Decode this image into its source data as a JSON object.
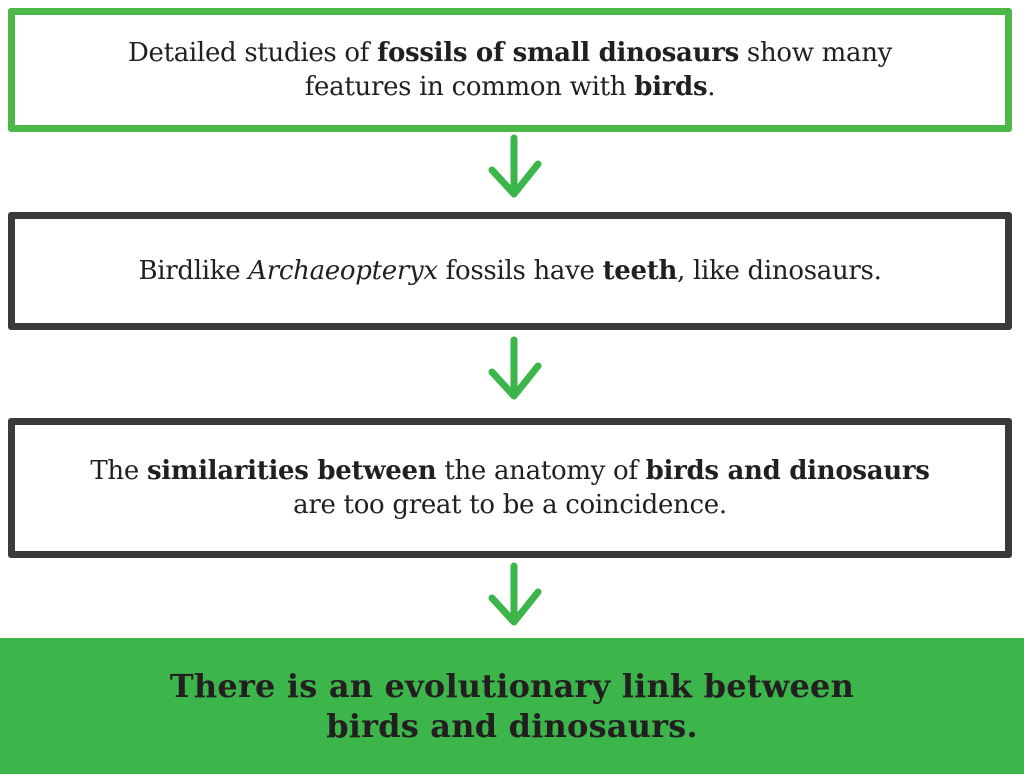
{
  "colors": {
    "green": "#3cb54a",
    "outline_green": "#4db848",
    "outline_dark": "#3a3a3c",
    "text": "#231f20"
  },
  "icons": {
    "arrow": "arrow-down-icon"
  },
  "steps": [
    {
      "segments": [
        {
          "text": "Detailed studies of ",
          "style": "normal"
        },
        {
          "text": "fossils of small dinosaurs",
          "style": "bold"
        },
        {
          "text": " show many",
          "style": "normal"
        },
        {
          "text": "features in common with ",
          "style": "normal"
        },
        {
          "text": "birds",
          "style": "bold"
        },
        {
          "text": ".",
          "style": "normal"
        }
      ]
    },
    {
      "segments": [
        {
          "text": "Birdlike ",
          "style": "normal"
        },
        {
          "text": "Archaeopteryx",
          "style": "italic"
        },
        {
          "text": " fossils have ",
          "style": "normal"
        },
        {
          "text": "teeth",
          "style": "bold"
        },
        {
          "text": ", like dinosaurs.",
          "style": "normal"
        }
      ]
    },
    {
      "segments": [
        {
          "text": "The ",
          "style": "normal"
        },
        {
          "text": "similarities between",
          "style": "bold"
        },
        {
          "text": " the anatomy of ",
          "style": "normal"
        },
        {
          "text": "birds and dinosaurs",
          "style": "bold"
        },
        {
          "text": "are too great to be a coincidence.",
          "style": "normal"
        }
      ]
    }
  ],
  "conclusion": {
    "line1": "There is an evolutionary link between",
    "line2": "birds and dinosaurs."
  }
}
